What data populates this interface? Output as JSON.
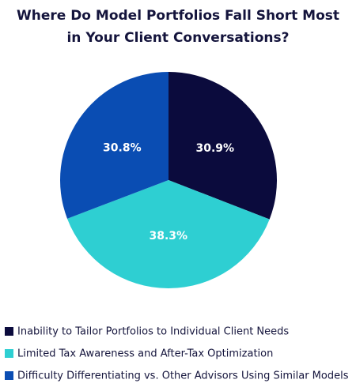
{
  "chart_data": {
    "type": "pie",
    "title": "Where Do Model Portfolios Fall Short Most in Your Client Conversations?",
    "categories": [
      "Inability to Tailor Portfolios to Individual Client Needs",
      "Limited Tax Awareness and After-Tax Optimization",
      "Difficulty Differentiating vs. Other Advisors Using Similar Models"
    ],
    "values": [
      30.9,
      38.3,
      30.8
    ],
    "value_labels": [
      "30.9%",
      "38.3%",
      "30.8%"
    ],
    "colors": [
      "#0b0b3d",
      "#2ecfd2",
      "#0a4db3"
    ],
    "legend": "bottom-left"
  }
}
